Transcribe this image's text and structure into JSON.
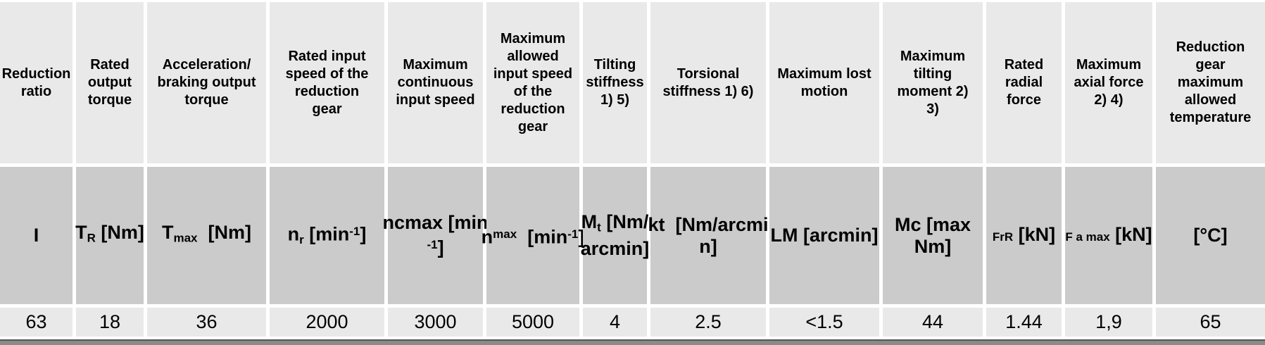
{
  "colors": {
    "cell_light": "#e9e9e9",
    "cell_dark": "#cbcbcb",
    "gap_white": "#ffffff",
    "bottom_bar": "#8a8a8a",
    "bottom_bar_edge": "#555555",
    "text": "#000000"
  },
  "table": {
    "columns": [
      {
        "id": "reduction-ratio",
        "header": "Reduction\nratio",
        "unit": [
          {
            "t": "I"
          }
        ],
        "value": "63"
      },
      {
        "id": "rated-output-torque",
        "header": "Rated\noutput\ntorque",
        "unit": [
          {
            "t": "T"
          },
          {
            "t": "R",
            "s": "sub"
          },
          {
            "t": " [Nm]"
          }
        ],
        "value": "18"
      },
      {
        "id": "accel-braking-output-torque",
        "header": "Acceleration/\nbraking output\ntorque",
        "unit": [
          {
            "t": "T"
          },
          {
            "t": "max",
            "s": "sub"
          },
          {
            "t": "  [Nm]"
          }
        ],
        "value": "36"
      },
      {
        "id": "rated-input-speed",
        "header": "Rated input\nspeed of the\nreduction\ngear",
        "unit": [
          {
            "t": "n"
          },
          {
            "t": "r",
            "s": "sub"
          },
          {
            "t": " [min"
          },
          {
            "t": "-1",
            "s": "sup"
          },
          {
            "t": "]"
          }
        ],
        "value": "2000"
      },
      {
        "id": "max-continuous-input-speed",
        "header": "Maximum\ncontinuous\ninput speed",
        "unit": [
          {
            "t": "ncmax [min"
          },
          {
            "s": "br"
          },
          {
            "t": "-1",
            "s": "sup"
          },
          {
            "t": "]"
          }
        ],
        "value": "3000"
      },
      {
        "id": "max-allowed-input-speed",
        "header": "Maximum\nallowed\ninput speed\nof the\nreduction\ngear",
        "unit": [
          {
            "t": "n"
          },
          {
            "t": "max",
            "s": "sup"
          },
          {
            "t": "  [min"
          },
          {
            "t": "-1",
            "s": "sup"
          },
          {
            "t": "]"
          }
        ],
        "value": "5000"
      },
      {
        "id": "tilting-stiffness",
        "header": "Tilting\nstiffness\n1) 5)",
        "unit": [
          {
            "t": "M"
          },
          {
            "t": "t",
            "s": "sub"
          },
          {
            "t": " [Nm/"
          },
          {
            "s": "br"
          },
          {
            "t": "arcmin]"
          }
        ],
        "value": "4"
      },
      {
        "id": "torsional-stiffness",
        "header": "Torsional\nstiffness 1) 6)",
        "unit": [
          {
            "t": "kt  [Nm/arcmi"
          },
          {
            "s": "br"
          },
          {
            "t": "n]"
          }
        ],
        "value": "2.5"
      },
      {
        "id": "max-lost-motion",
        "header": "Maximum lost\nmotion",
        "unit": [
          {
            "t": "LM [arcmin]"
          }
        ],
        "value": "<1.5"
      },
      {
        "id": "max-tilting-moment",
        "header": "Maximum\ntilting\nmoment 2)\n3)",
        "unit": [
          {
            "t": "Mc [max"
          },
          {
            "s": "br"
          },
          {
            "t": "Nm]"
          }
        ],
        "value": "44"
      },
      {
        "id": "rated-radial-force",
        "header": "Rated\nradial\nforce",
        "unit": [
          {
            "t": "FrR",
            "s": "small"
          },
          {
            "t": " [kN]"
          }
        ],
        "value": "1.44"
      },
      {
        "id": "max-axial-force",
        "header": "Maximum\naxial force\n2) 4)",
        "unit": [
          {
            "t": "F a max",
            "s": "small"
          },
          {
            "t": " [kN]"
          }
        ],
        "value": "1,9"
      },
      {
        "id": "max-allowed-temperature",
        "header": "Reduction\ngear\nmaximum\nallowed\ntemperature",
        "unit": [
          {
            "t": "[°C]"
          }
        ],
        "value": "65"
      }
    ]
  }
}
